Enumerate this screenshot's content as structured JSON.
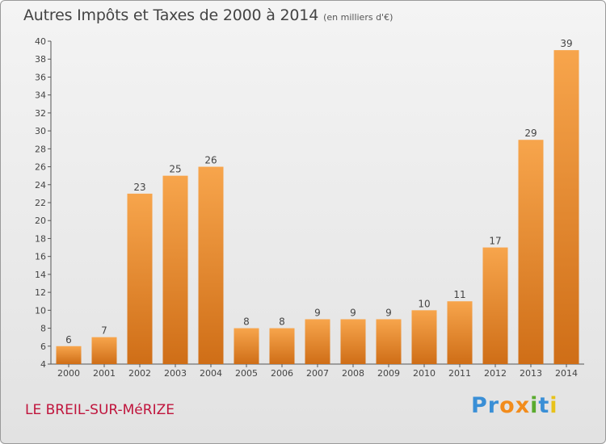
{
  "title": "Autres Impôts et Taxes de 2000 à 2014",
  "subtitle": "(en milliers d'€)",
  "commune": "LE BREIL-SUR-MéRIZE",
  "logo": {
    "text": "Proxiti",
    "letters": [
      {
        "char": "P",
        "color": "#3a8fd6"
      },
      {
        "char": "r",
        "color": "#3a8fd6"
      },
      {
        "char": "o",
        "color": "#f28c1c"
      },
      {
        "char": "x",
        "color": "#f28c1c"
      },
      {
        "char": "i",
        "color": "#5aab2e"
      },
      {
        "char": "t",
        "color": "#3a8fd6"
      },
      {
        "char": "i",
        "color": "#e8c21a"
      }
    ]
  },
  "colors": {
    "bar_light": "#f7a54c",
    "bar_dark": "#cf6e17",
    "commune": "#c0143c",
    "text": "#444444"
  },
  "chart_data": {
    "type": "bar",
    "categories": [
      "2000",
      "2001",
      "2002",
      "2003",
      "2004",
      "2005",
      "2006",
      "2007",
      "2008",
      "2009",
      "2010",
      "2011",
      "2012",
      "2013",
      "2014"
    ],
    "values": [
      6,
      7,
      23,
      25,
      26,
      8,
      8,
      9,
      9,
      9,
      10,
      11,
      17,
      29,
      39
    ],
    "ylim": [
      4,
      40
    ],
    "yticks": [
      4,
      6,
      8,
      10,
      12,
      14,
      16,
      18,
      20,
      22,
      24,
      26,
      28,
      30,
      32,
      34,
      36,
      38,
      40
    ],
    "grid": false,
    "xlabel": "",
    "ylabel": ""
  }
}
